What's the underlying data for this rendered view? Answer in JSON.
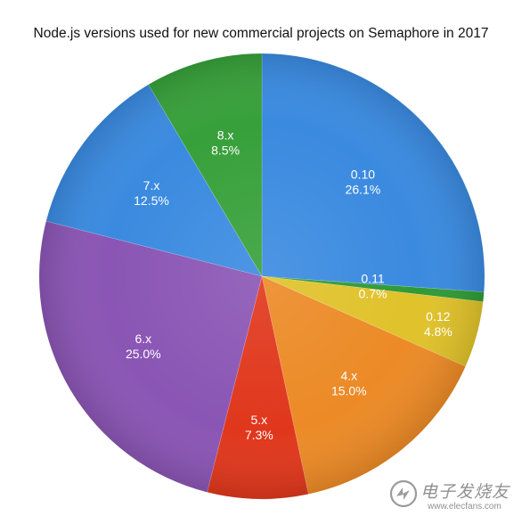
{
  "chart_data": {
    "type": "pie",
    "title": "Node.js versions used for new commercial projects on Semaphore in 2017",
    "start_angle": "12 o'clock",
    "direction": "clockwise",
    "slices": [
      {
        "label": "0.10",
        "value": 26.1,
        "value_label": "26.1%",
        "color": "#3a8ae0"
      },
      {
        "label": "0.11",
        "value": 0.7,
        "value_label": "0.7%",
        "color": "#2f9a36"
      },
      {
        "label": "0.12",
        "value": 4.8,
        "value_label": "4.8%",
        "color": "#e0c22a"
      },
      {
        "label": "4.x",
        "value": 15.0,
        "value_label": "15.0%",
        "color": "#ec8a26"
      },
      {
        "label": "5.x",
        "value": 7.3,
        "value_label": "7.3%",
        "color": "#e0371c"
      },
      {
        "label": "6.x",
        "value": 25.0,
        "value_label": "25.0%",
        "color": "#8a55b4"
      },
      {
        "label": "7.x",
        "value": 12.5,
        "value_label": "12.5%",
        "color": "#3a8ae0"
      },
      {
        "label": "8.x",
        "value": 8.5,
        "value_label": "8.5%",
        "color": "#37a03a"
      }
    ]
  },
  "watermark": {
    "name": "电子发烧友",
    "url": "www.elecfans.com"
  }
}
